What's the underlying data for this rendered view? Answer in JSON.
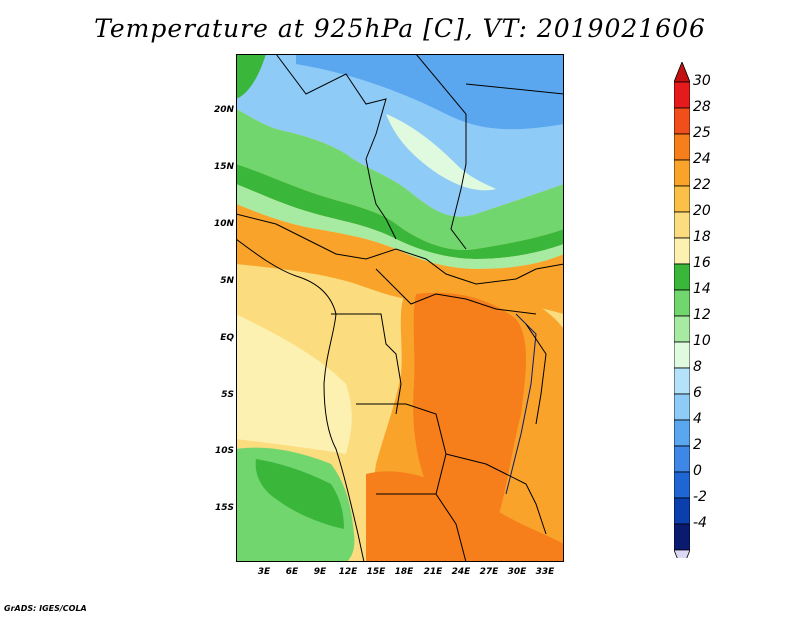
{
  "title": "Temperature at 925hPa [C], VT: 2019021606",
  "credit": "GrADS: IGES/COLA",
  "lat_ticks": [
    "20N",
    "15N",
    "10N",
    "5N",
    "EQ",
    "5S",
    "10S",
    "15S"
  ],
  "lon_ticks": [
    "3E",
    "6E",
    "9E",
    "12E",
    "15E",
    "18E",
    "21E",
    "24E",
    "27E",
    "30E",
    "33E"
  ],
  "colorbar": {
    "labels": [
      "30",
      "28",
      "25",
      "24",
      "22",
      "20",
      "18",
      "16",
      "14",
      "12",
      "10",
      "8",
      "6",
      "4",
      "2",
      "0",
      "-2",
      "-4"
    ],
    "colors": [
      "#e41a1c",
      "#f04e1a",
      "#f67e1b",
      "#f9a32a",
      "#fac048",
      "#fbdc7e",
      "#fcf1b0",
      "#3ab73a",
      "#71d66e",
      "#a7eaa1",
      "#e0fae0",
      "#b4e2fb",
      "#8ecbf7",
      "#5aa7ef",
      "#3e87e6",
      "#1f66d4",
      "#0b3fae",
      "#0a1a6e"
    ],
    "top_arrow_color": "#c41010",
    "bottom_arrow_color": "#dcd9f5"
  }
}
